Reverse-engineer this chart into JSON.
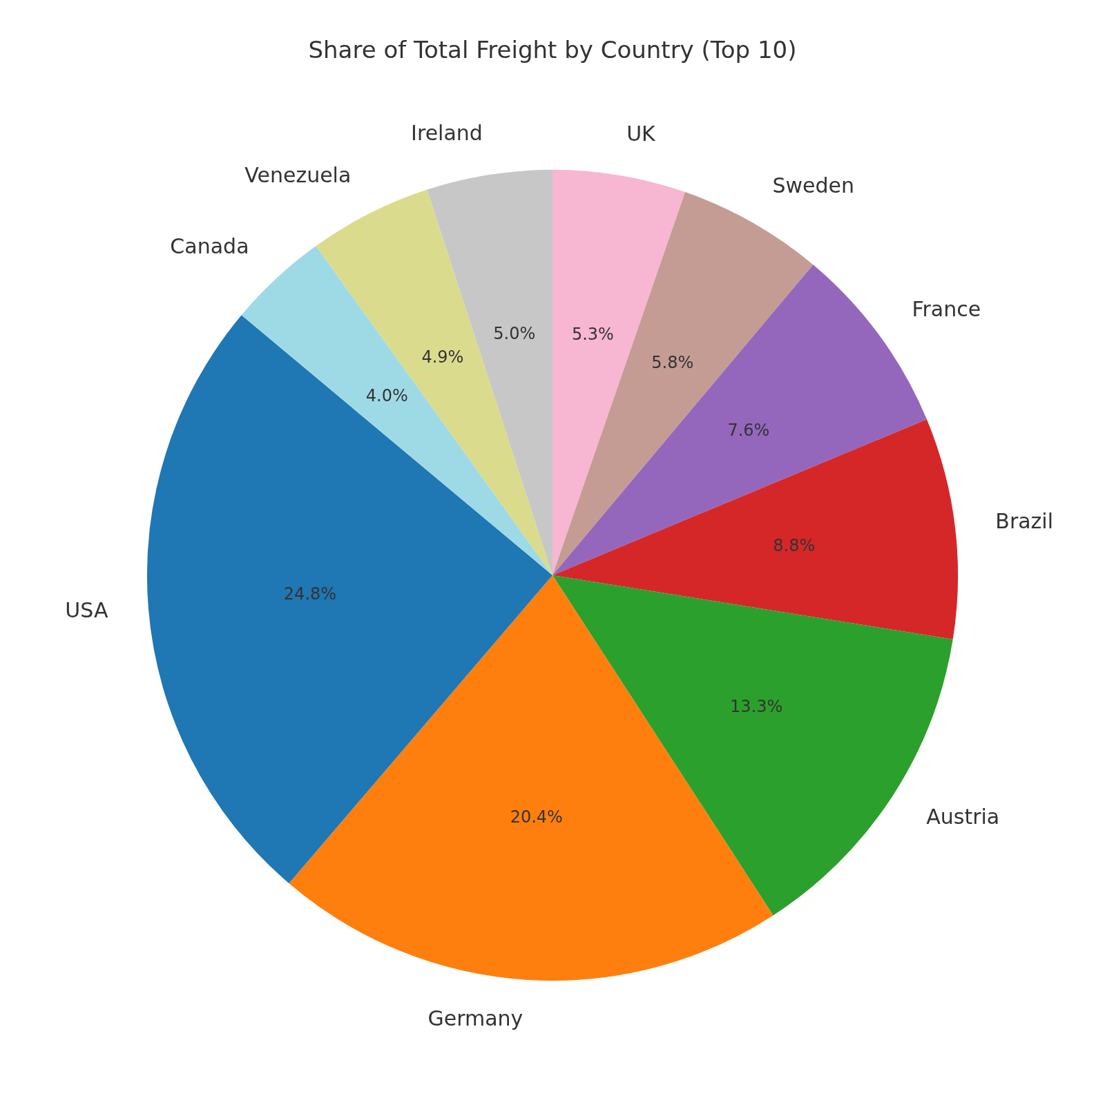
{
  "chart_data": {
    "type": "pie",
    "title": "Share of Total Freight by Country (Top 10)",
    "categories": [
      "UK",
      "Sweden",
      "France",
      "Brazil",
      "Austria",
      "Germany",
      "USA",
      "Canada",
      "Venezuela",
      "Ireland"
    ],
    "values": [
      5.3,
      5.8,
      7.6,
      8.8,
      13.3,
      20.4,
      24.8,
      4.0,
      4.9,
      5.0
    ],
    "value_labels": [
      "5.3%",
      "5.8%",
      "7.6%",
      "8.8%",
      "13.3%",
      "20.4%",
      "24.8%",
      "4.0%",
      "4.9%",
      "5.0%"
    ],
    "colors": [
      "#f7b6d2",
      "#c49c94",
      "#9467bd",
      "#d62728",
      "#2ca02c",
      "#ff7f0e",
      "#1f77b4",
      "#9edae5",
      "#dbdb8d",
      "#c7c7c7"
    ],
    "legend": false
  }
}
